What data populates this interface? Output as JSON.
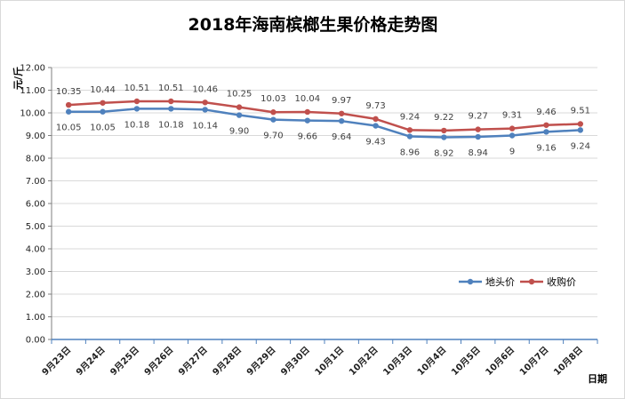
{
  "chart_data": {
    "type": "line",
    "title": "2018年海南槟榔生果价格走势图",
    "ylabel": "元/斤",
    "xlabel": "日期",
    "ylim": [
      0,
      12
    ],
    "yticks": [
      "0.00",
      "1.00",
      "2.00",
      "3.00",
      "4.00",
      "5.00",
      "6.00",
      "7.00",
      "8.00",
      "9.00",
      "10.00",
      "11.00",
      "12.00"
    ],
    "categories": [
      "9月23日",
      "9月24日",
      "9月25日",
      "9月26日",
      "9月27日",
      "9月28日",
      "9月29日",
      "9月30日",
      "10月1日",
      "10月2日",
      "10月3日",
      "10月4日",
      "10月5日",
      "10月6日",
      "10月7日",
      "10月8日"
    ],
    "legend_position": "right",
    "grid": true,
    "series": [
      {
        "name": "地头价",
        "color": "#4f81bd",
        "values": [
          10.05,
          10.05,
          10.18,
          10.18,
          10.14,
          9.9,
          9.7,
          9.66,
          9.64,
          9.43,
          8.96,
          8.92,
          8.94,
          9,
          9.16,
          9.24
        ],
        "labels": [
          "10.05",
          "10.05",
          "10.18",
          "10.18",
          "10.14",
          "9.90",
          "9.70",
          "9.66",
          "9.64",
          "9.43",
          "8.96",
          "8.92",
          "8.94",
          "9",
          "9.16",
          "9.24"
        ]
      },
      {
        "name": "收购价",
        "color": "#c0504d",
        "values": [
          10.35,
          10.44,
          10.51,
          10.51,
          10.46,
          10.25,
          10.03,
          10.04,
          9.97,
          9.73,
          9.24,
          9.22,
          9.27,
          9.31,
          9.46,
          9.51
        ],
        "labels": [
          "10.35",
          "10.44",
          "10.51",
          "10.51",
          "10.46",
          "10.25",
          "10.03",
          "10.04",
          "9.97",
          "9.73",
          "9.24",
          "9.22",
          "9.27",
          "9.31",
          "9.46",
          "9.51"
        ]
      }
    ]
  }
}
